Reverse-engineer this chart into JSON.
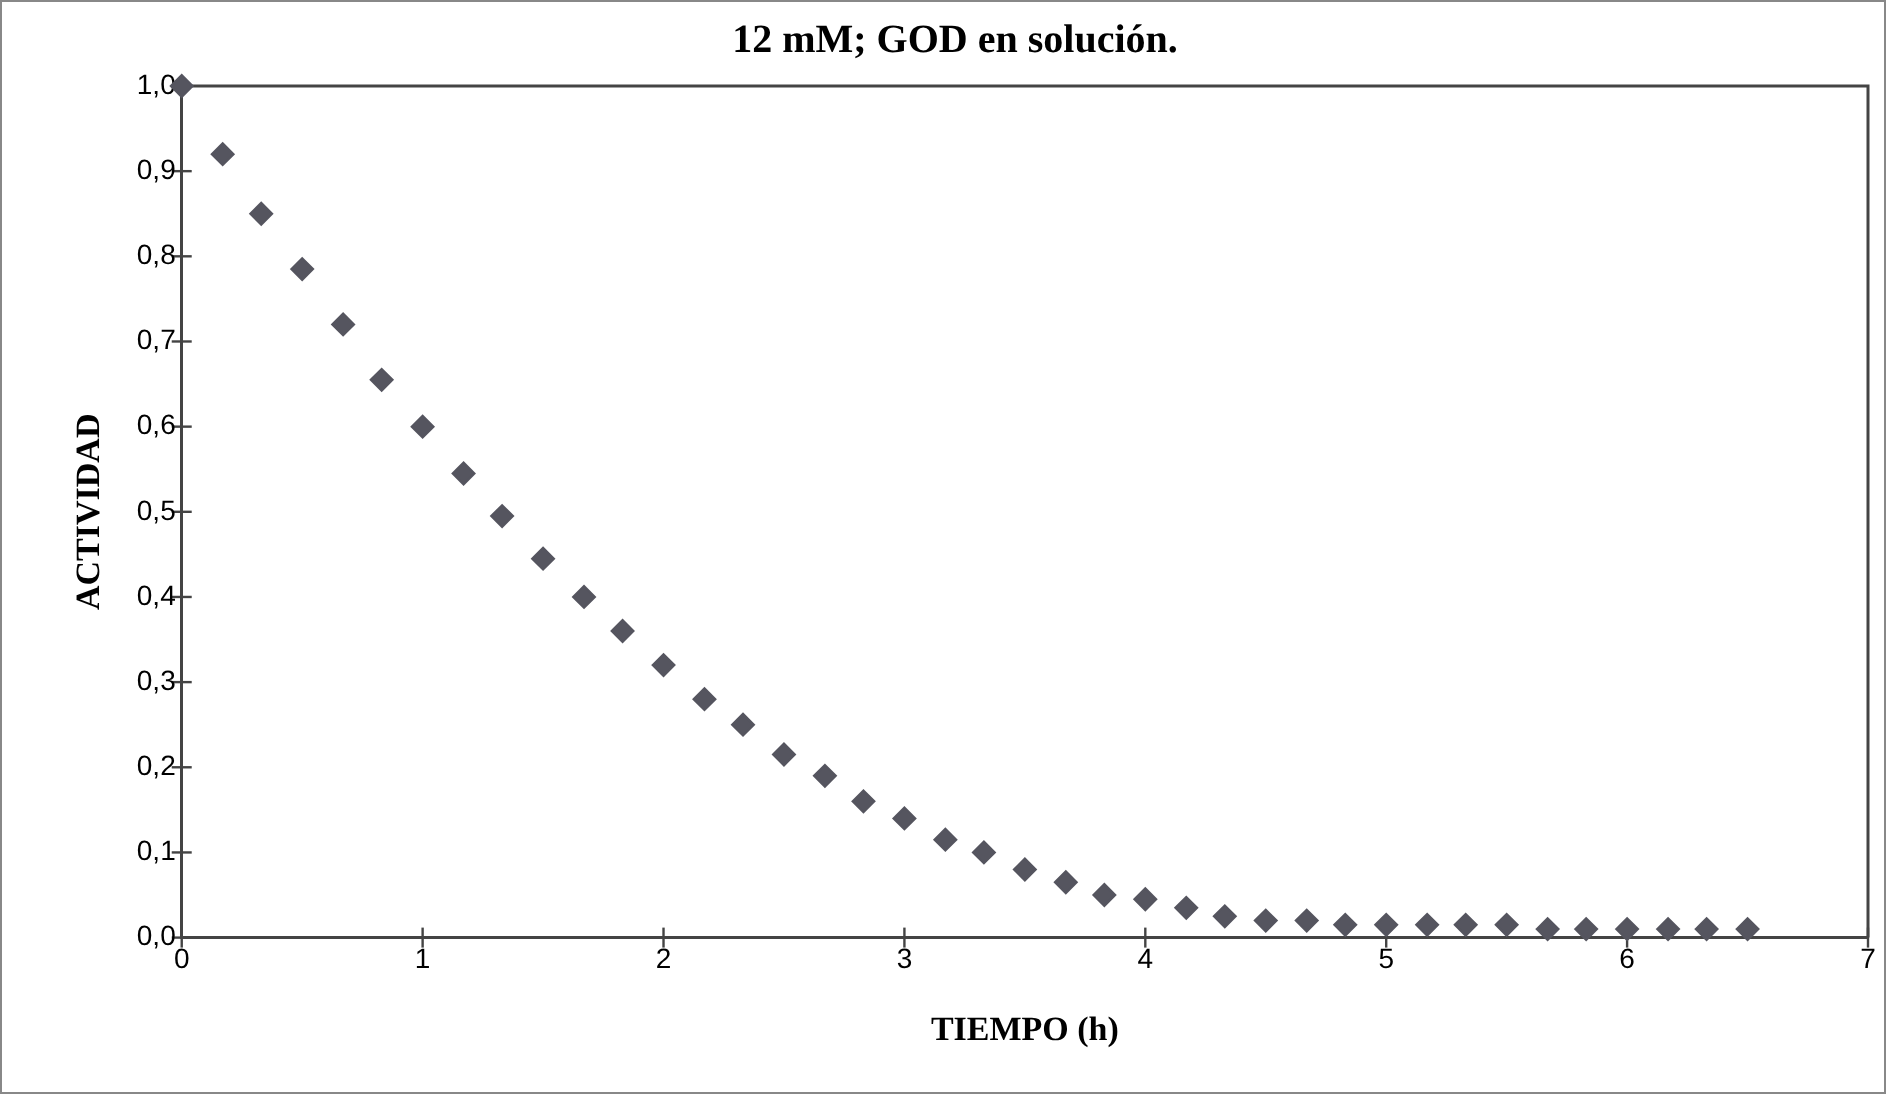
{
  "chart_data": {
    "type": "scatter",
    "title": "12 mM; GOD en solución.",
    "xlabel": "TIEMPO (h)",
    "ylabel": "ACTIVIDAD",
    "x": [
      0,
      0.17,
      0.33,
      0.5,
      0.67,
      0.83,
      1,
      1.17,
      1.33,
      1.5,
      1.67,
      1.83,
      2,
      2.17,
      2.33,
      2.5,
      2.67,
      2.83,
      3,
      3.17,
      3.33,
      3.5,
      3.67,
      3.83,
      4,
      4.17,
      4.33,
      4.5,
      4.67,
      4.83,
      5,
      5.17,
      5.33,
      5.5,
      5.67,
      5.83,
      6,
      6.17,
      6.33,
      6.5
    ],
    "series": [
      {
        "color": "#55555f",
        "values": [
          1.0,
          0.92,
          0.85,
          0.785,
          0.72,
          0.655,
          0.6,
          0.545,
          0.495,
          0.445,
          0.4,
          0.36,
          0.32,
          0.28,
          0.25,
          0.215,
          0.19,
          0.16,
          0.14,
          0.115,
          0.1,
          0.08,
          0.065,
          0.05,
          0.045,
          0.035,
          0.025,
          0.02,
          0.02,
          0.015,
          0.015,
          0.015,
          0.015,
          0.015,
          0.01,
          0.01,
          0.01,
          0.01,
          0.01,
          0.01
        ]
      }
    ],
    "xlim": [
      0,
      7
    ],
    "xticks": [
      0,
      1,
      2,
      3,
      4,
      5,
      6,
      7
    ],
    "ylim": [
      0,
      1
    ],
    "yticks": [
      {
        "value": 0,
        "label": "0,0"
      },
      {
        "value": 0.1,
        "label": "0,1"
      },
      {
        "value": 0.2,
        "label": "0,2"
      },
      {
        "value": 0.3,
        "label": "0,3"
      },
      {
        "value": 0.4,
        "label": "0,4"
      },
      {
        "value": 0.5,
        "label": "0,5"
      },
      {
        "value": 0.6,
        "label": "0,6"
      },
      {
        "value": 0.7,
        "label": "0,7"
      },
      {
        "value": 0.8,
        "label": "0,8"
      },
      {
        "value": 0.9,
        "label": "0,9"
      },
      {
        "value": 1,
        "label": "1,0"
      }
    ],
    "grid": false,
    "legend": false,
    "marker": "diamond"
  }
}
